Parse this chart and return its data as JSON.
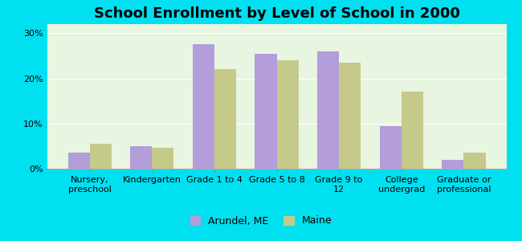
{
  "title": "School Enrollment by Level of School in 2000",
  "categories": [
    "Nursery,\npreschool",
    "Kindergarten",
    "Grade 1 to 4",
    "Grade 5 to 8",
    "Grade 9 to\n12",
    "College\nundergrad",
    "Graduate or\nprofessional"
  ],
  "arundel_values": [
    3.5,
    5.0,
    27.5,
    25.5,
    26.0,
    9.5,
    2.0
  ],
  "maine_values": [
    5.5,
    4.7,
    22.0,
    24.0,
    23.5,
    17.0,
    3.5
  ],
  "arundel_color": "#b39ddb",
  "maine_color": "#c5c98a",
  "background_outer": "#00e0f0",
  "background_inner": "#e8f5e0",
  "ylim": [
    0,
    32
  ],
  "yticks": [
    0,
    10,
    20,
    30
  ],
  "ytick_labels": [
    "0%",
    "10%",
    "20%",
    "30%"
  ],
  "legend_labels": [
    "Arundel, ME",
    "Maine"
  ],
  "title_fontsize": 13,
  "axis_label_fontsize": 8,
  "legend_fontsize": 9,
  "bar_width": 0.35
}
